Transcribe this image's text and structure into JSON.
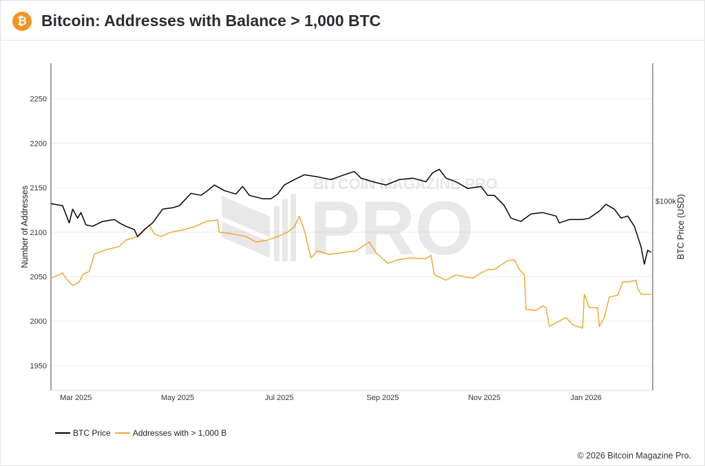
{
  "header": {
    "title": "Bitcoin: Addresses with Balance > 1,000 BTC",
    "logo_icon": "bitcoin-icon",
    "logo_glyph": "₿"
  },
  "watermark": {
    "text": "BITCOIN MAGAZINE PRO",
    "big": "PRO"
  },
  "footer": {
    "copyright": "© 2026 Bitcoin Magazine Pro."
  },
  "chart_data": {
    "type": "line",
    "title": "Bitcoin: Addresses with Balance > 1,000 BTC",
    "xlabel": "",
    "ylabel": "Number of Addresses",
    "y2label": "BTC Price (USD)",
    "xlim": [
      "2025-02-14",
      "2026-02-10"
    ],
    "ylim": [
      1922,
      2290
    ],
    "y2lim": [
      26000,
      266000
    ],
    "y2scale": "log",
    "grid": true,
    "legend_position": "bottom-left",
    "x_ticks": [
      {
        "date": "2025-03-01",
        "label": "Mar 2025"
      },
      {
        "date": "2025-05-01",
        "label": "May 2025"
      },
      {
        "date": "2025-07-01",
        "label": "Jul 2025"
      },
      {
        "date": "2025-09-01",
        "label": "Sep 2025"
      },
      {
        "date": "2025-11-01",
        "label": "Nov 2025"
      },
      {
        "date": "2026-01-01",
        "label": "Jan 2026"
      }
    ],
    "y_ticks": [
      1950,
      2000,
      2050,
      2100,
      2150,
      2200,
      2250
    ],
    "y2_ticks": [
      {
        "value": 100000,
        "label": "$100k"
      }
    ],
    "series": [
      {
        "name": "BTC Price",
        "axis": "right",
        "color": "#000000",
        "points": [
          [
            "2025-02-14",
            98100
          ],
          [
            "2025-02-21",
            96600
          ],
          [
            "2025-02-25",
            85500
          ],
          [
            "2025-02-27",
            94300
          ],
          [
            "2025-03-02",
            88500
          ],
          [
            "2025-03-04",
            92000
          ],
          [
            "2025-03-07",
            84300
          ],
          [
            "2025-03-11",
            83500
          ],
          [
            "2025-03-17",
            86400
          ],
          [
            "2025-03-24",
            87600
          ],
          [
            "2025-03-27",
            85500
          ],
          [
            "2025-03-31",
            83500
          ],
          [
            "2025-04-05",
            81500
          ],
          [
            "2025-04-07",
            77600
          ],
          [
            "2025-04-11",
            81500
          ],
          [
            "2025-04-16",
            85500
          ],
          [
            "2025-04-22",
            94300
          ],
          [
            "2025-04-28",
            95200
          ],
          [
            "2025-05-02",
            96600
          ],
          [
            "2025-05-06",
            101500
          ],
          [
            "2025-05-09",
            105500
          ],
          [
            "2025-05-15",
            104000
          ],
          [
            "2025-05-19",
            107600
          ],
          [
            "2025-05-23",
            111900
          ],
          [
            "2025-05-29",
            107600
          ],
          [
            "2025-06-05",
            105000
          ],
          [
            "2025-06-09",
            110800
          ],
          [
            "2025-06-13",
            104000
          ],
          [
            "2025-06-21",
            101500
          ],
          [
            "2025-06-26",
            101500
          ],
          [
            "2025-06-30",
            105000
          ],
          [
            "2025-07-04",
            111900
          ],
          [
            "2025-07-10",
            116300
          ],
          [
            "2025-07-16",
            120400
          ],
          [
            "2025-07-24",
            118600
          ],
          [
            "2025-08-01",
            116300
          ],
          [
            "2025-08-09",
            120400
          ],
          [
            "2025-08-15",
            123300
          ],
          [
            "2025-08-19",
            117500
          ],
          [
            "2025-08-26",
            114600
          ],
          [
            "2025-09-03",
            111900
          ],
          [
            "2025-09-11",
            116300
          ],
          [
            "2025-09-19",
            117500
          ],
          [
            "2025-09-27",
            114600
          ],
          [
            "2025-10-01",
            122100
          ],
          [
            "2025-10-05",
            125200
          ],
          [
            "2025-10-09",
            117500
          ],
          [
            "2025-10-15",
            114600
          ],
          [
            "2025-10-22",
            109200
          ],
          [
            "2025-10-30",
            110800
          ],
          [
            "2025-11-03",
            104000
          ],
          [
            "2025-11-07",
            104000
          ],
          [
            "2025-11-13",
            96600
          ],
          [
            "2025-11-17",
            88500
          ],
          [
            "2025-11-23",
            86400
          ],
          [
            "2025-11-29",
            91100
          ],
          [
            "2025-12-06",
            92000
          ],
          [
            "2025-12-14",
            89800
          ],
          [
            "2025-12-16",
            85500
          ],
          [
            "2025-12-22",
            87600
          ],
          [
            "2025-12-30",
            87600
          ],
          [
            "2026-01-03",
            88500
          ],
          [
            "2026-01-09",
            93000
          ],
          [
            "2026-01-13",
            97600
          ],
          [
            "2026-01-18",
            94300
          ],
          [
            "2026-01-22",
            88500
          ],
          [
            "2026-01-26",
            89800
          ],
          [
            "2026-01-30",
            83500
          ],
          [
            "2026-02-03",
            72100
          ],
          [
            "2026-02-05",
            63800
          ],
          [
            "2026-02-07",
            70400
          ],
          [
            "2026-02-09",
            69400
          ]
        ]
      },
      {
        "name": "Addresses with > 1,000 B",
        "axis": "left",
        "color": "#f0a830",
        "points": [
          [
            "2025-02-14",
            2048
          ],
          [
            "2025-02-21",
            2054
          ],
          [
            "2025-02-23",
            2048
          ],
          [
            "2025-02-27",
            2040
          ],
          [
            "2025-03-03",
            2044
          ],
          [
            "2025-03-05",
            2052
          ],
          [
            "2025-03-09",
            2056
          ],
          [
            "2025-03-12",
            2075
          ],
          [
            "2025-03-17",
            2079
          ],
          [
            "2025-03-21",
            2081
          ],
          [
            "2025-03-27",
            2084
          ],
          [
            "2025-03-31",
            2091
          ],
          [
            "2025-04-07",
            2095
          ],
          [
            "2025-04-11",
            2102
          ],
          [
            "2025-04-14",
            2108
          ],
          [
            "2025-04-17",
            2098
          ],
          [
            "2025-04-21",
            2095
          ],
          [
            "2025-04-27",
            2100
          ],
          [
            "2025-05-03",
            2102
          ],
          [
            "2025-05-11",
            2106
          ],
          [
            "2025-05-18",
            2112
          ],
          [
            "2025-05-25",
            2114
          ],
          [
            "2025-05-26",
            2100
          ],
          [
            "2025-06-03",
            2098
          ],
          [
            "2025-06-11",
            2095
          ],
          [
            "2025-06-17",
            2089
          ],
          [
            "2025-06-24",
            2091
          ],
          [
            "2025-06-30",
            2095
          ],
          [
            "2025-07-06",
            2100
          ],
          [
            "2025-07-10",
            2106
          ],
          [
            "2025-07-13",
            2118
          ],
          [
            "2025-07-16",
            2102
          ],
          [
            "2025-07-20",
            2071
          ],
          [
            "2025-07-24",
            2079
          ],
          [
            "2025-07-31",
            2075
          ],
          [
            "2025-08-08",
            2077
          ],
          [
            "2025-08-16",
            2079
          ],
          [
            "2025-08-24",
            2089
          ],
          [
            "2025-08-28",
            2077
          ],
          [
            "2025-09-04",
            2065
          ],
          [
            "2025-09-10",
            2069
          ],
          [
            "2025-09-18",
            2071
          ],
          [
            "2025-09-27",
            2070
          ],
          [
            "2025-09-30",
            2074
          ],
          [
            "2025-10-02",
            2052
          ],
          [
            "2025-10-09",
            2046
          ],
          [
            "2025-10-15",
            2052
          ],
          [
            "2025-10-25",
            2048
          ],
          [
            "2025-10-30",
            2054
          ],
          [
            "2025-11-03",
            2058
          ],
          [
            "2025-11-07",
            2058
          ],
          [
            "2025-11-15",
            2068
          ],
          [
            "2025-11-19",
            2069
          ],
          [
            "2025-11-22",
            2058
          ],
          [
            "2025-11-25",
            2052
          ],
          [
            "2025-11-26",
            2013
          ],
          [
            "2025-12-02",
            2012
          ],
          [
            "2025-12-06",
            2017
          ],
          [
            "2025-12-08",
            2015
          ],
          [
            "2025-12-10",
            1994
          ],
          [
            "2025-12-16",
            2000
          ],
          [
            "2025-12-20",
            2004
          ],
          [
            "2025-12-24",
            1996
          ],
          [
            "2025-12-30",
            1992
          ],
          [
            "2025-12-31",
            2030
          ],
          [
            "2026-01-03",
            2015
          ],
          [
            "2026-01-08",
            2015
          ],
          [
            "2026-01-09",
            1994
          ],
          [
            "2026-01-12",
            2004
          ],
          [
            "2026-01-15",
            2027
          ],
          [
            "2026-01-20",
            2029
          ],
          [
            "2026-01-23",
            2044
          ],
          [
            "2026-01-27",
            2044
          ],
          [
            "2026-01-31",
            2046
          ],
          [
            "2026-02-01",
            2037
          ],
          [
            "2026-02-03",
            2030
          ],
          [
            "2026-02-09",
            2030
          ]
        ]
      }
    ]
  }
}
